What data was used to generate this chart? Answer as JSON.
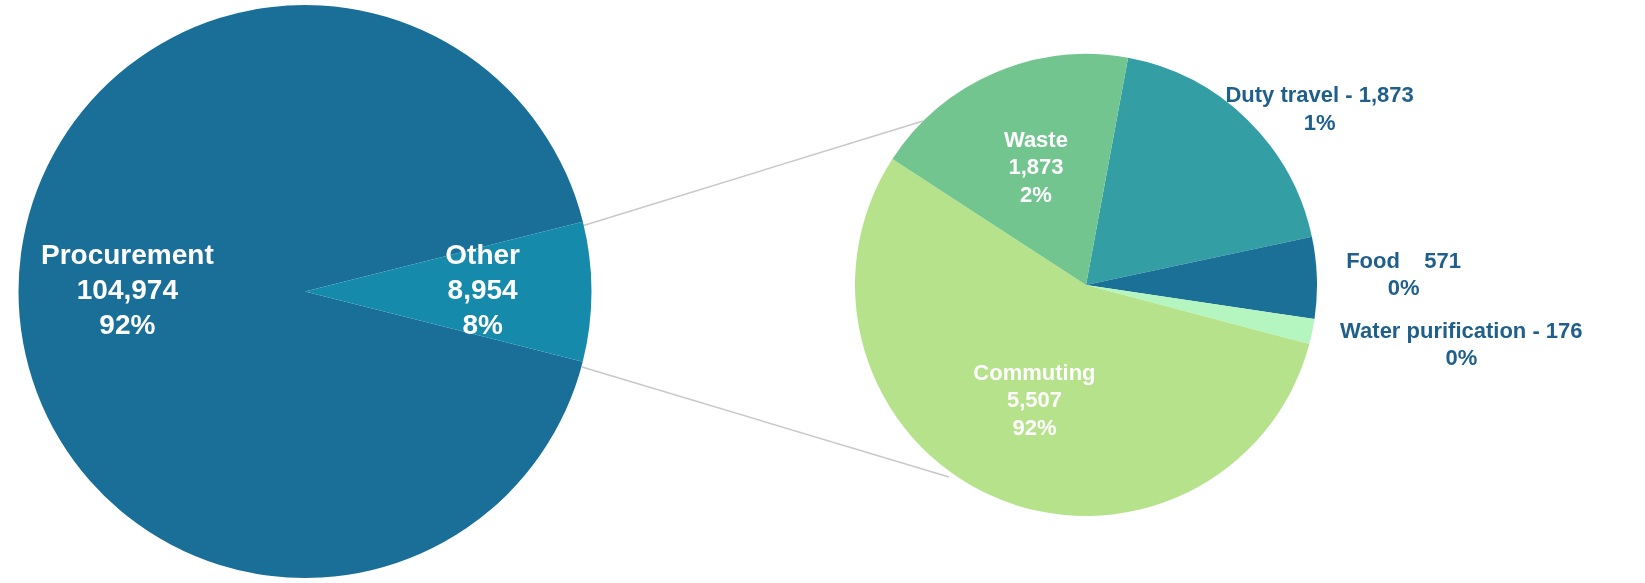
{
  "chart_data": [
    {
      "type": "pie",
      "categories": [
        "Procurement",
        "Other"
      ],
      "values": [
        104974,
        8954
      ],
      "colors": [
        "#1a6f99",
        "#168aab"
      ],
      "value_labels": [
        "104,974\n92%",
        "8,954\n8%"
      ]
    },
    {
      "type": "pie",
      "categories": [
        "Duty travel -",
        "Food",
        "Water purification -",
        "Commuting",
        "Waste"
      ],
      "values": [
        1873,
        571,
        176,
        5507,
        1873
      ],
      "colors": [
        "#339ea3",
        "#1b7097",
        "#b5f5c0",
        "#b5e28b",
        "#73c58f"
      ],
      "value_labels": [
        "1,873\n1%",
        "571\n0%",
        "176\n0%",
        "5,507\n92%",
        "1,873\n2%"
      ]
    }
  ]
}
